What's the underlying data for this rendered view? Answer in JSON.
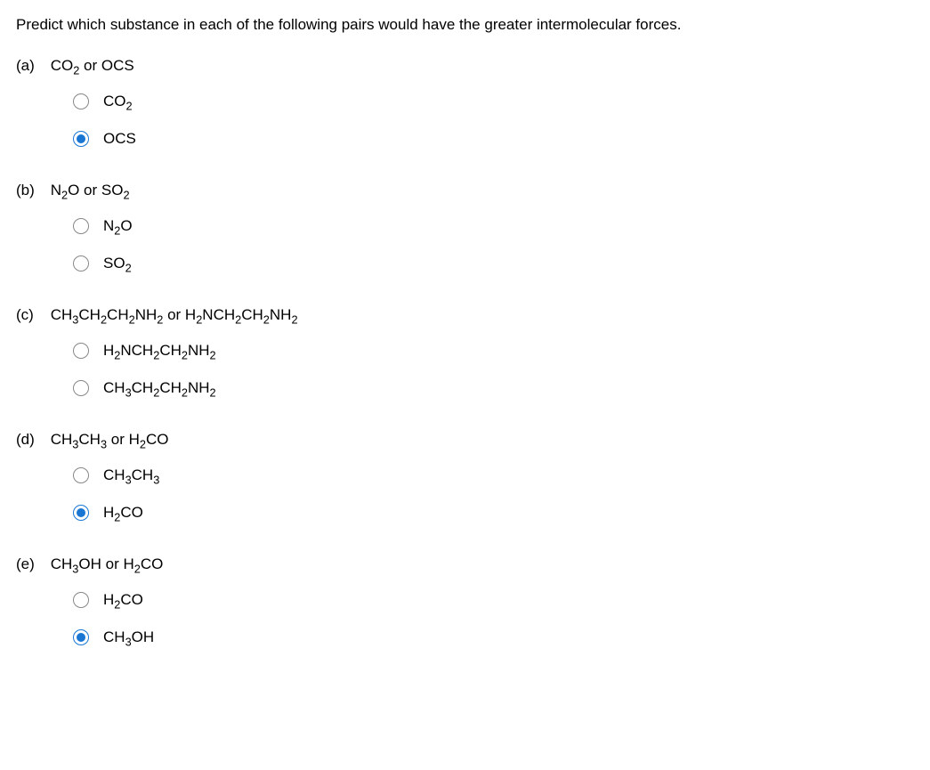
{
  "prompt": "Predict which substance in each of the following pairs would have the greater intermolecular forces.",
  "questions": {
    "a": {
      "label": "(a)",
      "text_parts": [
        "CO",
        "2",
        " or OCS"
      ],
      "options": [
        {
          "parts": [
            "CO",
            "2"
          ],
          "selected": false
        },
        {
          "parts": [
            "OCS"
          ],
          "selected": true
        }
      ]
    },
    "b": {
      "label": "(b)",
      "text_parts": [
        "N",
        "2",
        "O or SO",
        "2"
      ],
      "options": [
        {
          "parts": [
            "N",
            "2",
            "O"
          ],
          "selected": false
        },
        {
          "parts": [
            "SO",
            "2"
          ],
          "selected": false
        }
      ]
    },
    "c": {
      "label": "(c)",
      "text_parts": [
        "CH",
        "3",
        "CH",
        "2",
        "CH",
        "2",
        "NH",
        "2",
        " or H",
        "2",
        "NCH",
        "2",
        "CH",
        "2",
        "NH",
        "2"
      ],
      "options": [
        {
          "parts": [
            "H",
            "2",
            "NCH",
            "2",
            "CH",
            "2",
            "NH",
            "2"
          ],
          "selected": false
        },
        {
          "parts": [
            "CH",
            "3",
            "CH",
            "2",
            "CH",
            "2",
            "NH",
            "2"
          ],
          "selected": false
        }
      ]
    },
    "d": {
      "label": "(d)",
      "text_parts": [
        "CH",
        "3",
        "CH",
        "3",
        " or H",
        "2",
        "CO"
      ],
      "options": [
        {
          "parts": [
            "CH",
            "3",
            "CH",
            "3"
          ],
          "selected": false
        },
        {
          "parts": [
            "H",
            "2",
            "CO"
          ],
          "selected": true
        }
      ]
    },
    "e": {
      "label": "(e)",
      "text_parts": [
        "CH",
        "3",
        "OH or H",
        "2",
        "CO"
      ],
      "options": [
        {
          "parts": [
            "H",
            "2",
            "CO"
          ],
          "selected": false
        },
        {
          "parts": [
            "CH",
            "3",
            "OH"
          ],
          "selected": true
        }
      ]
    }
  },
  "styling": {
    "font_size_pt": 13,
    "text_color": "#000000",
    "background_color": "#ffffff",
    "radio_border_unselected": "#888888",
    "radio_border_selected": "#1976d2",
    "radio_fill_selected": "#1976d2"
  }
}
